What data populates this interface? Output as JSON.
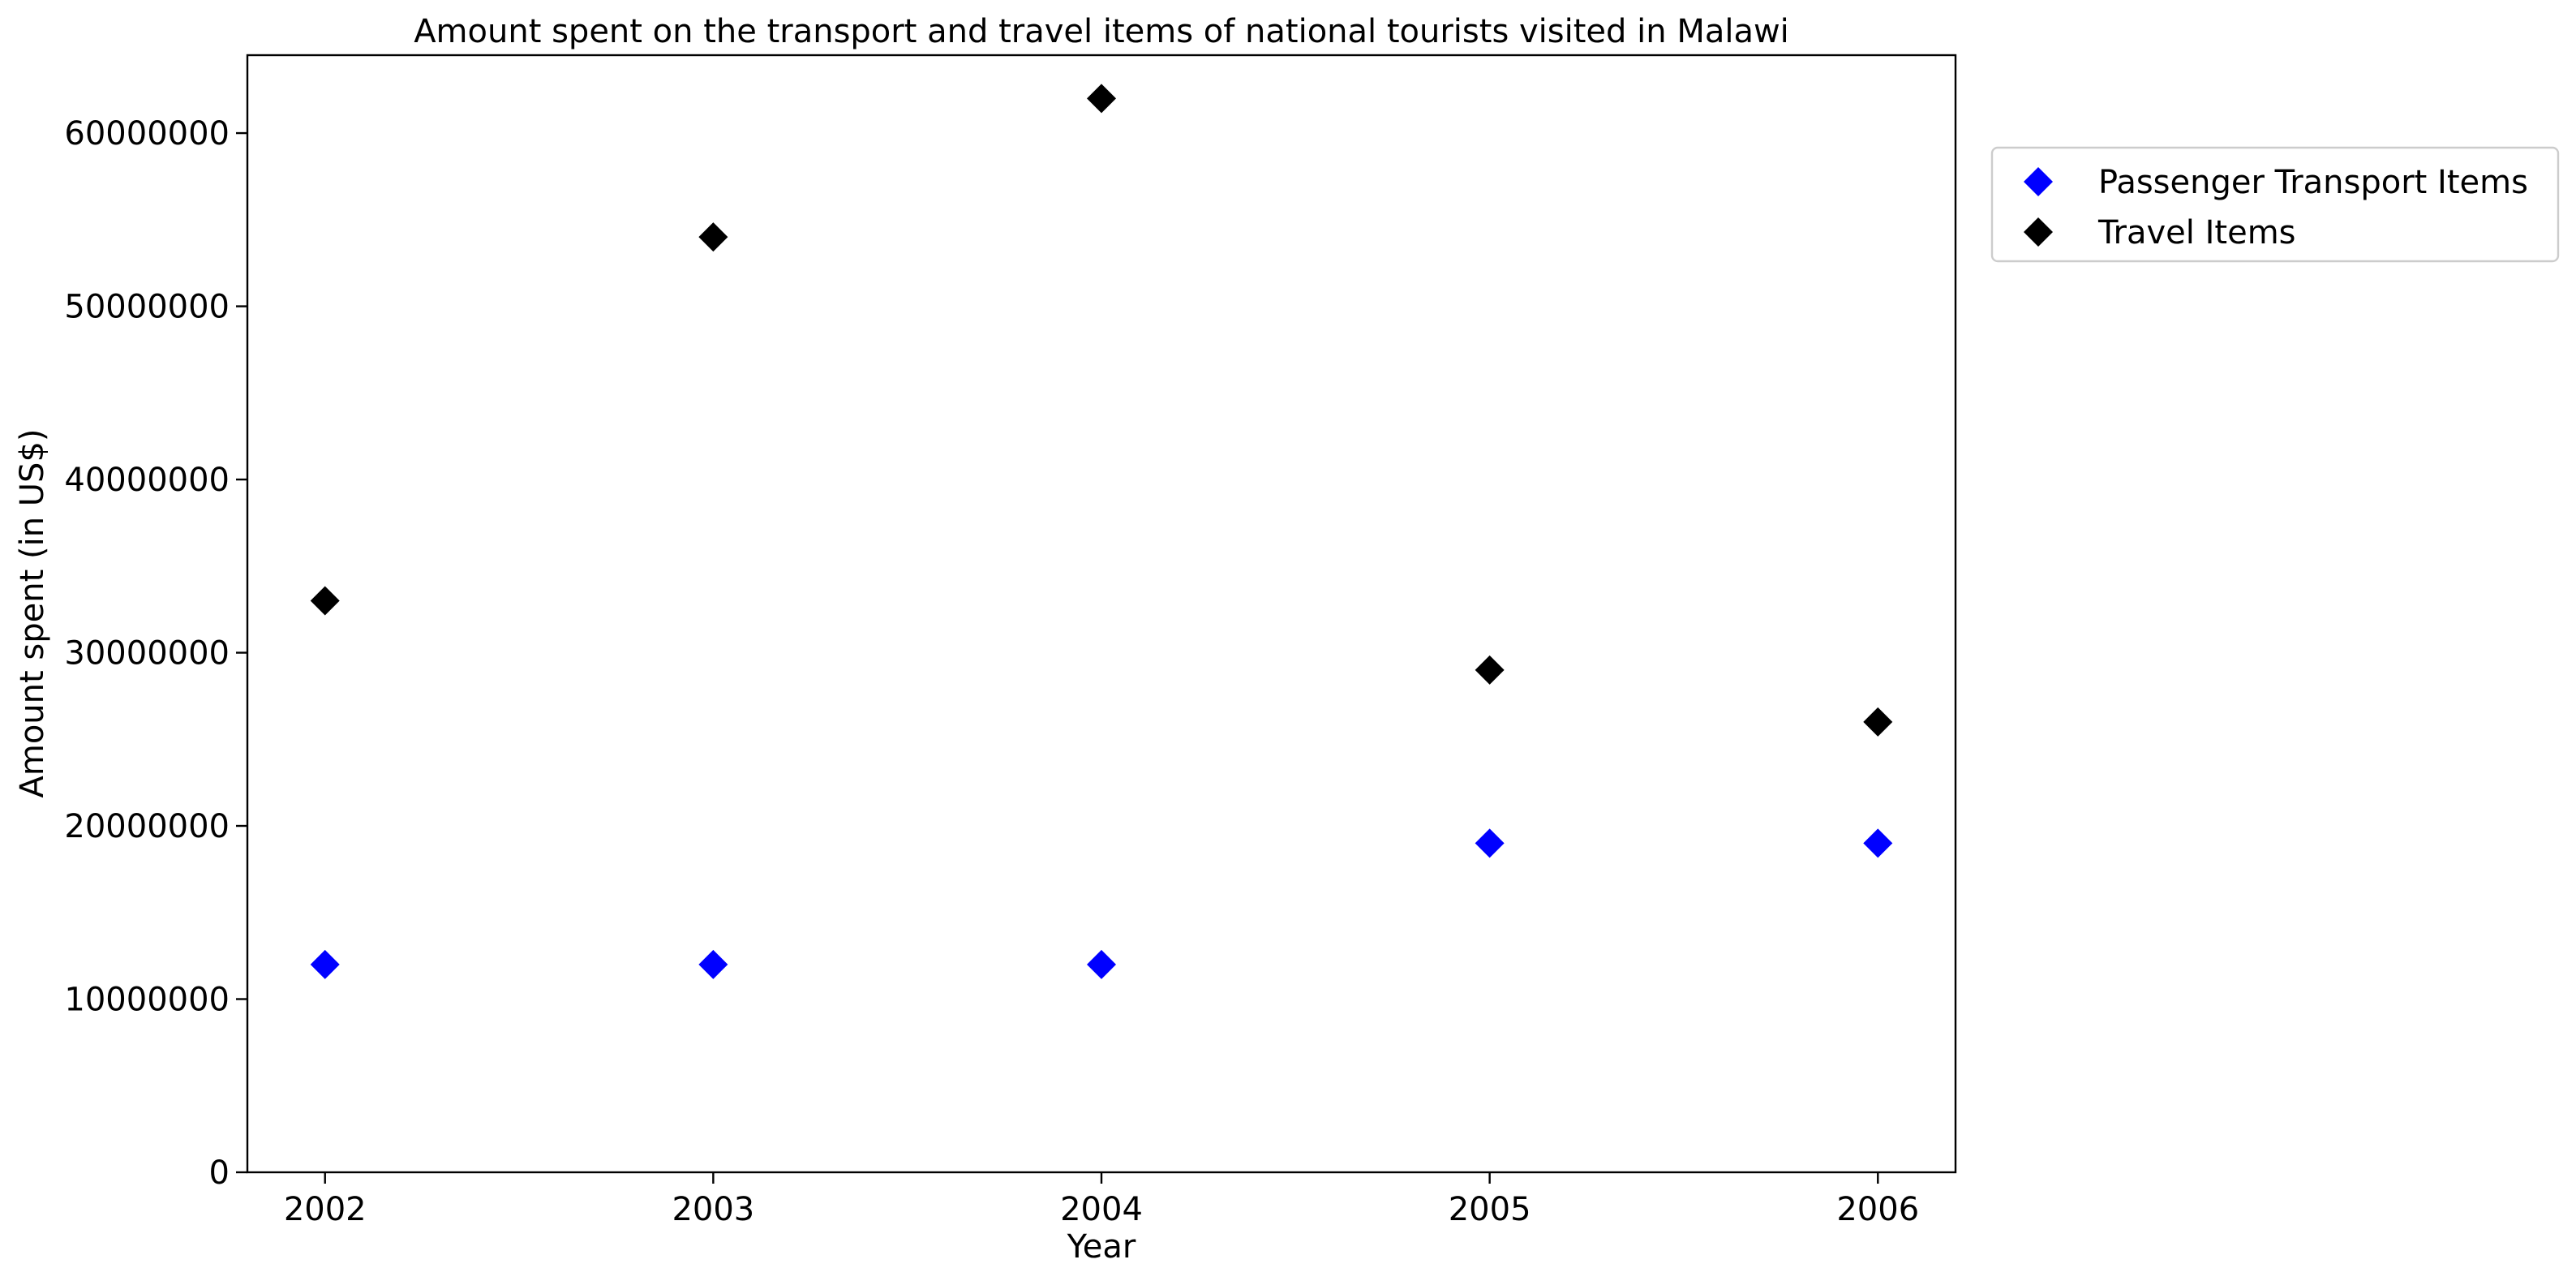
{
  "chart_data": {
    "type": "scatter",
    "title": "Amount spent on the transport and travel items of national tourists visited in Malawi",
    "xlabel": "Year",
    "ylabel": "Amount spent (in US$)",
    "x": [
      2002,
      2003,
      2004,
      2005,
      2006
    ],
    "x_tick_labels": [
      "2002",
      "2003",
      "2004",
      "2005",
      "2006"
    ],
    "y_ticks": [
      0,
      10000000,
      20000000,
      30000000,
      40000000,
      50000000,
      60000000
    ],
    "y_tick_labels": [
      "0",
      "10000000",
      "20000000",
      "30000000",
      "40000000",
      "50000000",
      "60000000"
    ],
    "xlim": [
      2001.8,
      2006.2
    ],
    "ylim": [
      0,
      64500000
    ],
    "grid": false,
    "legend_position": "outside-top-right",
    "marker": "diamond",
    "series": [
      {
        "name": "Passenger Transport Items",
        "color": "#0000ff",
        "values": [
          12000000,
          12000000,
          12000000,
          19000000,
          19000000
        ]
      },
      {
        "name": "Travel Items",
        "color": "#000000",
        "values": [
          33000000,
          54000000,
          62000000,
          29000000,
          26000000
        ]
      }
    ]
  }
}
